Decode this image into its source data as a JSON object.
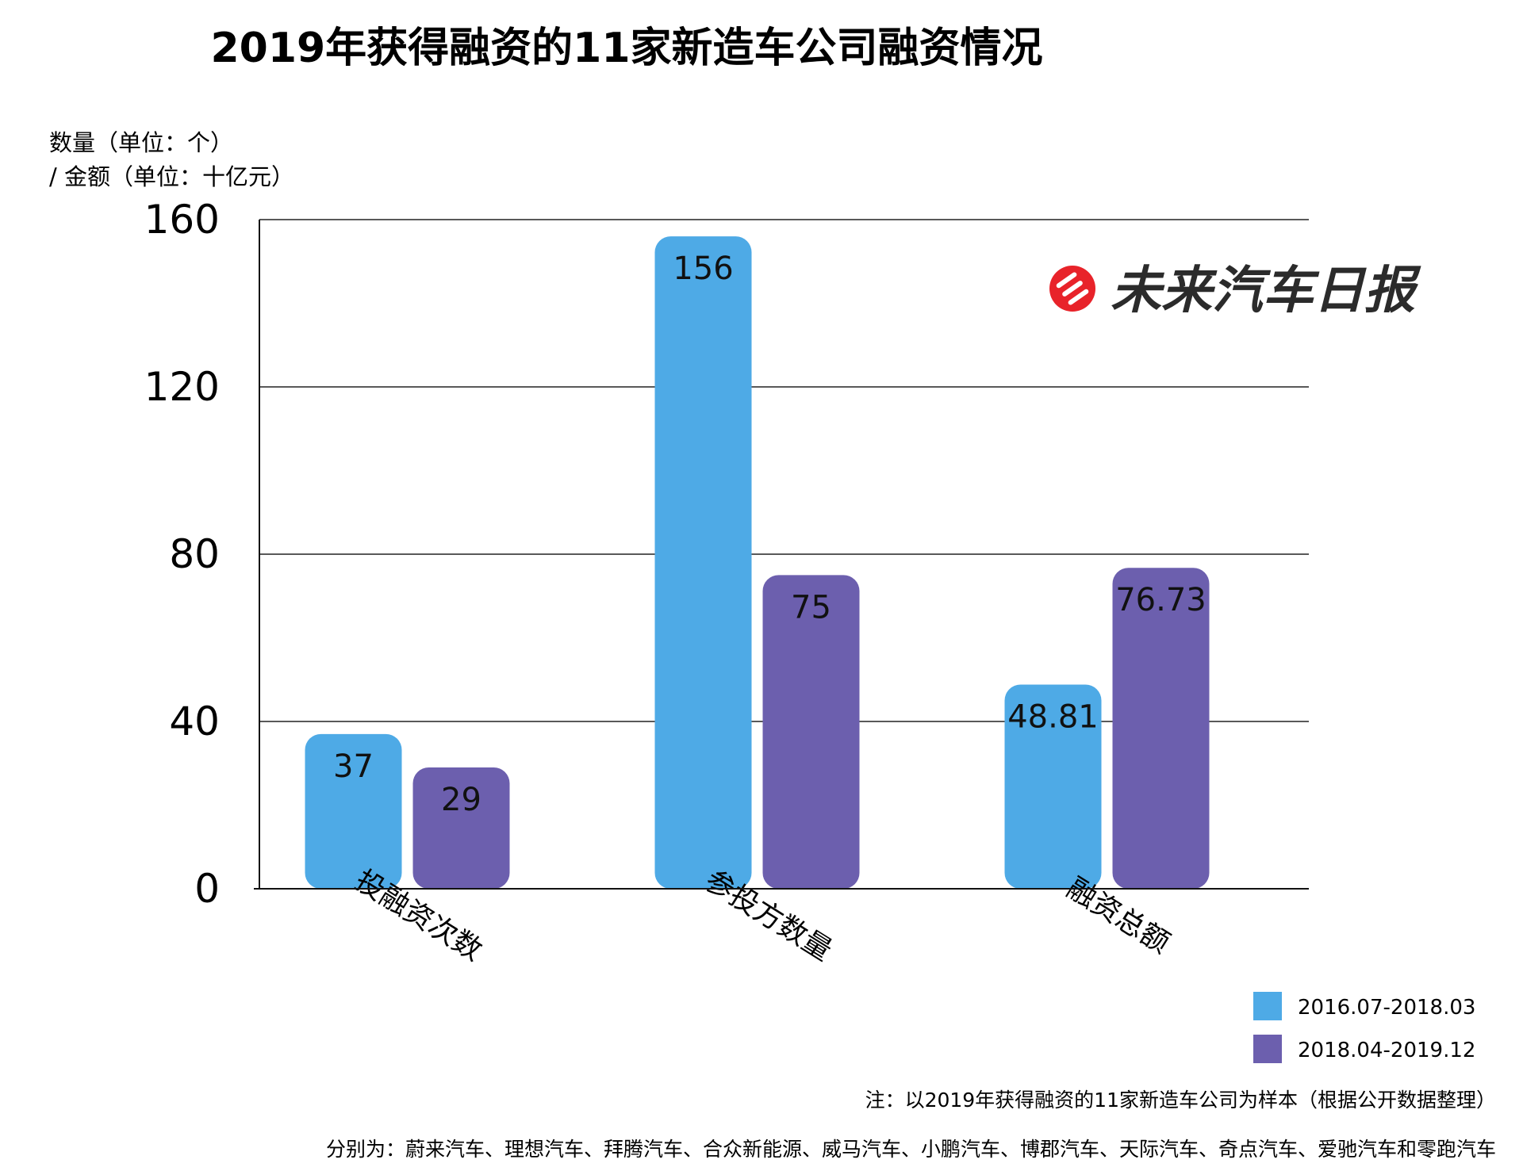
{
  "chart_data": {
    "type": "bar",
    "title": "2019年获得融资的11家新造车公司融资情况",
    "ylabel_line1": "数量（单位：个）",
    "ylabel_line2": "/ 金额（单位：十亿元）",
    "ylim": [
      0,
      160
    ],
    "yticks": [
      "0",
      "40",
      "80",
      "120",
      "160"
    ],
    "ytick_values": [
      0,
      40,
      80,
      120,
      160
    ],
    "categories": [
      "投融资次数",
      "参投方数量",
      "融资总额"
    ],
    "series": [
      {
        "name": "2016.07-2018.03",
        "values": [
          37,
          156,
          48.81
        ],
        "labels": [
          "37",
          "156",
          "48.81"
        ],
        "color": "#4eaae6"
      },
      {
        "name": "2018.04-2019.12",
        "values": [
          29,
          75,
          76.73
        ],
        "labels": [
          "29",
          "75",
          "76.73"
        ],
        "color": "#6c5fae"
      }
    ],
    "grid": true,
    "legend_position": "bottom-right"
  },
  "logo": {
    "text": "未来汽车日报",
    "color": "#e8232a"
  },
  "notes": {
    "line1": "注：以2019年获得融资的11家新造车公司为样本（根据公开数据整理）",
    "line2": "分别为：蔚来汽车、理想汽车、拜腾汽车、合众新能源、威马汽车、小鹏汽车、博郡汽车、天际汽车、奇点汽车、爱驰汽车和零跑汽车"
  }
}
